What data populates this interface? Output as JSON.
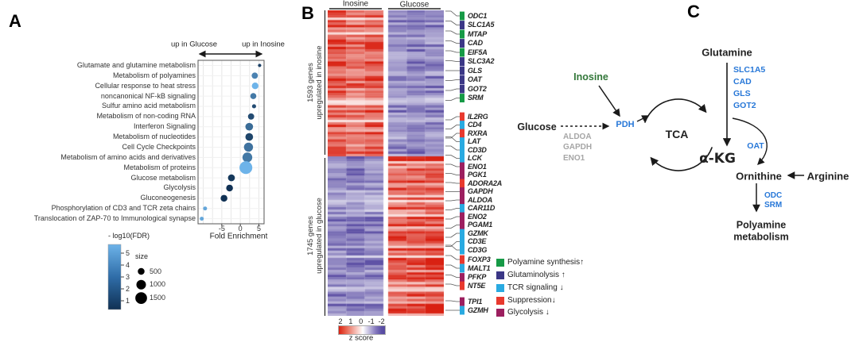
{
  "panelA": {
    "label": "A",
    "dir_left": "up in Glucose",
    "dir_right": "up in Inosine",
    "xlabel": "Fold Enrichment",
    "fdr_title": "- log10(FDR)",
    "fdr_ticks": [
      "5",
      "4",
      "3",
      "2",
      "1"
    ],
    "size_title": "size",
    "size_items": [
      {
        "label": "500",
        "size": 500
      },
      {
        "label": "1000",
        "size": 1000
      },
      {
        "label": "1500",
        "size": 1500
      }
    ]
  },
  "chart_data": [
    {
      "type": "scatter",
      "title": "Pathway enrichment, Inosine vs Glucose (bubble plot)",
      "xlabel": "Fold Enrichment",
      "xlim": [
        -11.4,
        6.4
      ],
      "x_ticks": [
        -5,
        0,
        5
      ],
      "direction_labels": {
        "left": "up in Glucose",
        "right": "up in Inosine"
      },
      "color_scale": {
        "label": "- log10(FDR)",
        "range": [
          1,
          5
        ],
        "low_color": "#103154",
        "high_color": "#6db3e9"
      },
      "size_scale": {
        "label": "size",
        "values": [
          500,
          1000,
          1500
        ]
      },
      "points": [
        {
          "pathway": "Glutamate and glutamine metabolism",
          "fold_enrichment": 5.2,
          "neg_log10_fdr": 1.5,
          "size": 120
        },
        {
          "pathway": "Metabolism of polyamines",
          "fold_enrichment": 3.9,
          "neg_log10_fdr": 3.5,
          "size": 420
        },
        {
          "pathway": "Cellular response to heat stress",
          "fold_enrichment": 4.0,
          "neg_log10_fdr": 5.0,
          "size": 480
        },
        {
          "pathway": "noncanonical NF-kB signaling",
          "fold_enrichment": 3.5,
          "neg_log10_fdr": 3.2,
          "size": 400
        },
        {
          "pathway": "Sulfur amino acid metabolism",
          "fold_enrichment": 3.7,
          "neg_log10_fdr": 1.8,
          "size": 180
        },
        {
          "pathway": "Metabolism of non-coding RNA",
          "fold_enrichment": 2.9,
          "neg_log10_fdr": 1.8,
          "size": 420
        },
        {
          "pathway": "Interferon Signaling",
          "fold_enrichment": 2.4,
          "neg_log10_fdr": 2.8,
          "size": 650
        },
        {
          "pathway": "Metabolism of nucleotides",
          "fold_enrichment": 2.4,
          "neg_log10_fdr": 1.6,
          "size": 650
        },
        {
          "pathway": "Cell Cycle Checkpoints",
          "fold_enrichment": 2.2,
          "neg_log10_fdr": 3.0,
          "size": 900
        },
        {
          "pathway": "Metabolism of amino acids and derivatives",
          "fold_enrichment": 1.9,
          "neg_log10_fdr": 3.2,
          "size": 1050
        },
        {
          "pathway": "Metabolism of proteins",
          "fold_enrichment": 1.5,
          "neg_log10_fdr": 5.0,
          "size": 1800
        },
        {
          "pathway": "Glucose metabolism",
          "fold_enrichment": -2.4,
          "neg_log10_fdr": 1.2,
          "size": 520
        },
        {
          "pathway": "Glycolysis",
          "fold_enrichment": -2.9,
          "neg_log10_fdr": 1.0,
          "size": 500
        },
        {
          "pathway": "Gluconeogenesis",
          "fold_enrichment": -4.4,
          "neg_log10_fdr": 1.0,
          "size": 500
        },
        {
          "pathway": "Phosphorylation of CD3 and TCR zeta chains",
          "fold_enrichment": -9.5,
          "neg_log10_fdr": 4.6,
          "size": 170
        },
        {
          "pathway": "Translocation of ZAP-70 to Immunological synapse",
          "fold_enrichment": -10.4,
          "neg_log10_fdr": 4.6,
          "size": 170
        }
      ]
    },
    {
      "type": "heatmap",
      "title": "Gene expression z-score heatmap, Inosine vs Glucose",
      "columns": [
        {
          "group": "Inosine",
          "n": 3
        },
        {
          "group": "Glucose",
          "n": 3
        }
      ],
      "row_groups": [
        {
          "label": "1593 genes upregulated in inosine",
          "n_genes": 1593,
          "pattern": "positive z (red) in Inosine columns, negative z (purple) in Glucose columns"
        },
        {
          "label": "1745 genes upregulated in glucose",
          "n_genes": 1745,
          "pattern": "negative z (purple) in Inosine columns, positive z (red) in Glucose columns"
        }
      ],
      "colorbar": {
        "label": "z score",
        "ticks": [
          2,
          1,
          0,
          -1,
          -2
        ],
        "positive_color": "#d92112",
        "negative_color": "#6054a6"
      }
    }
  ],
  "panelB": {
    "label": "B",
    "col_headers": [
      "Inosine",
      "Glucose"
    ],
    "group1": [
      "1593 genes",
      "upregulated in inosine"
    ],
    "group2": [
      "1745 genes",
      "upregulated in glucose"
    ],
    "zscore_ticks": [
      "2",
      "1",
      "0",
      "-1",
      "-2"
    ],
    "zscore_label": "z score",
    "render_seed": 11,
    "heat_colors": {
      "pos": "#d92112",
      "neg": "#5f52a6"
    },
    "category_colors": {
      "polyamine": "#169a46",
      "glutaminolysis": "#3b3786",
      "tcr": "#29aae1",
      "suppression": "#e8392e",
      "glycolysis": "#9c1f5f"
    },
    "genes": [
      {
        "name": "ODC1",
        "cat": "polyamine"
      },
      {
        "name": "SLC1A5",
        "cat": "glutaminolysis"
      },
      {
        "name": "MTAP",
        "cat": "polyamine"
      },
      {
        "name": "CAD",
        "cat": "glutaminolysis"
      },
      {
        "name": "EIF5A",
        "cat": "polyamine"
      },
      {
        "name": "SLC3A2",
        "cat": "glutaminolysis"
      },
      {
        "name": "GLS",
        "cat": "glutaminolysis"
      },
      {
        "name": "OAT",
        "cat": "glutaminolysis"
      },
      {
        "name": "GOT2",
        "cat": "glutaminolysis"
      },
      {
        "name": "SRM",
        "cat": "polyamine"
      },
      {
        "name": "IL2RG",
        "cat": "suppression"
      },
      {
        "name": "CD4",
        "cat": "tcr"
      },
      {
        "name": "RXRA",
        "cat": "suppression"
      },
      {
        "name": "LAT",
        "cat": "tcr"
      },
      {
        "name": "CD3D",
        "cat": "tcr"
      },
      {
        "name": "LCK",
        "cat": "tcr"
      },
      {
        "name": "ENO1",
        "cat": "glycolysis"
      },
      {
        "name": "PGK1",
        "cat": "glycolysis"
      },
      {
        "name": "ADORA2A",
        "cat": "suppression"
      },
      {
        "name": "GAPDH",
        "cat": "glycolysis"
      },
      {
        "name": "ALDOA",
        "cat": "glycolysis"
      },
      {
        "name": "CAR11D",
        "cat": "tcr"
      },
      {
        "name": "ENO2",
        "cat": "glycolysis"
      },
      {
        "name": "PGAM1",
        "cat": "glycolysis"
      },
      {
        "name": "GZMK",
        "cat": "tcr"
      },
      {
        "name": "CD3E",
        "cat": "tcr"
      },
      {
        "name": "CD3G",
        "cat": "tcr"
      },
      {
        "name": "FOXP3",
        "cat": "suppression"
      },
      {
        "name": "MALT1",
        "cat": "tcr"
      },
      {
        "name": "PFKP",
        "cat": "glycolysis"
      },
      {
        "name": "NT5E",
        "cat": "suppression"
      },
      {
        "name": "TPI1",
        "cat": "glycolysis"
      },
      {
        "name": "GZMH",
        "cat": "tcr"
      }
    ],
    "legend": [
      {
        "cat": "polyamine",
        "label": "Polyamine synthesis↑"
      },
      {
        "cat": "glutaminolysis",
        "label": "Glutaminolysis ↑"
      },
      {
        "cat": "tcr",
        "label": "TCR signaling ↓"
      },
      {
        "cat": "suppression",
        "label": "Suppression↓"
      },
      {
        "cat": "glycolysis",
        "label": "Glycolysis ↓"
      }
    ]
  },
  "panelC": {
    "label": "C",
    "glutamine": "Glutamine",
    "glutamine_genes": [
      "SLC1A5",
      "CAD",
      "GLS",
      "GOT2"
    ],
    "inosine": "Inosine",
    "glucose": "Glucose",
    "pdh": "PDH",
    "glycolysis_genes": [
      "ALDOA",
      "GAPDH",
      "ENO1"
    ],
    "tca": "TCA",
    "akg": "α-KG",
    "oat": "OAT",
    "ornithine": "Ornithine",
    "arginine": "Arginine",
    "ornithine_genes": [
      "ODC",
      "SRM"
    ],
    "polyamine_line1": "Polyamine",
    "polyamine_line2": "metabolism",
    "colors": {
      "gene_blue": "#2878d8",
      "inosine_green": "#33783a",
      "muted_gray": "#a6a6a6"
    }
  }
}
